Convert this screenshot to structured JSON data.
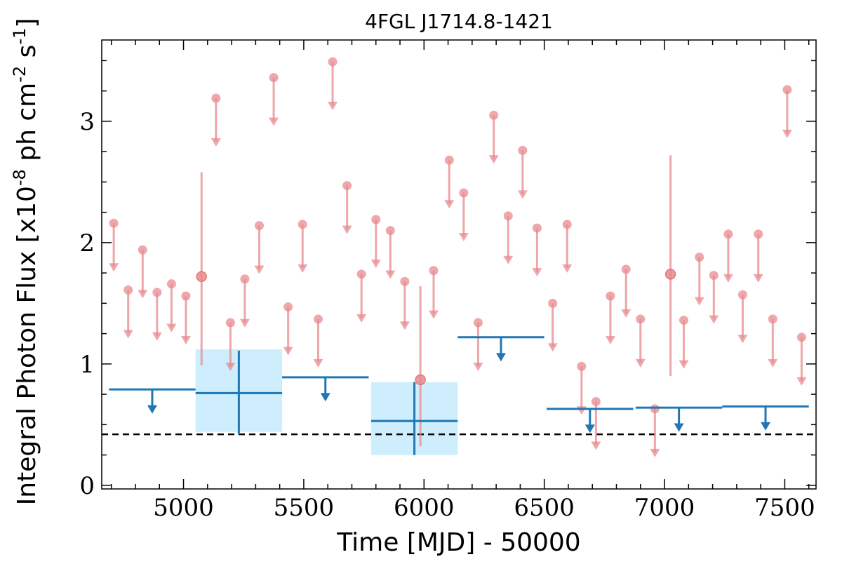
{
  "chart_data": {
    "type": "scatter",
    "title": "4FGL J1714.8-1421",
    "xlabel": "Time [MJD] - 50000",
    "ylabel": "Integral Photon Flux [x10^{-8} ph cm^{-2} s^{-1}]",
    "xlim": [
      4660,
      7630
    ],
    "ylim": [
      -0.03,
      3.67
    ],
    "x_ticks": [
      5000,
      5500,
      6000,
      6500,
      7000,
      7500
    ],
    "y_ticks": [
      0,
      1,
      2,
      3
    ],
    "grid": false,
    "legend": "none",
    "colors": {
      "short_points": "#e8898d",
      "long_bins": "#1f77b4",
      "long_bin_box": "#cfeefd",
      "baseline": "#000000"
    },
    "baseline_flux": 0.42,
    "series": [
      {
        "kind": "short-bin-upper-limits",
        "points": [
          {
            "x": 4710,
            "y": 2.16
          },
          {
            "x": 4770,
            "y": 1.61
          },
          {
            "x": 4830,
            "y": 1.94
          },
          {
            "x": 4890,
            "y": 1.59
          },
          {
            "x": 4950,
            "y": 1.66
          },
          {
            "x": 5010,
            "y": 1.56
          },
          {
            "x": 5135,
            "y": 3.19
          },
          {
            "x": 5195,
            "y": 1.34
          },
          {
            "x": 5255,
            "y": 1.7
          },
          {
            "x": 5315,
            "y": 2.14
          },
          {
            "x": 5375,
            "y": 3.36
          },
          {
            "x": 5435,
            "y": 1.47
          },
          {
            "x": 5495,
            "y": 2.15
          },
          {
            "x": 5560,
            "y": 1.37
          },
          {
            "x": 5620,
            "y": 3.49
          },
          {
            "x": 5680,
            "y": 2.47
          },
          {
            "x": 5740,
            "y": 1.74
          },
          {
            "x": 5800,
            "y": 2.19
          },
          {
            "x": 5860,
            "y": 2.1
          },
          {
            "x": 5920,
            "y": 1.68
          },
          {
            "x": 6040,
            "y": 1.77
          },
          {
            "x": 6105,
            "y": 2.68
          },
          {
            "x": 6165,
            "y": 2.41
          },
          {
            "x": 6225,
            "y": 1.34
          },
          {
            "x": 6290,
            "y": 3.05
          },
          {
            "x": 6350,
            "y": 2.22
          },
          {
            "x": 6410,
            "y": 2.76
          },
          {
            "x": 6470,
            "y": 2.12
          },
          {
            "x": 6535,
            "y": 1.5
          },
          {
            "x": 6595,
            "y": 2.15
          },
          {
            "x": 6655,
            "y": 0.98
          },
          {
            "x": 6715,
            "y": 0.69
          },
          {
            "x": 6775,
            "y": 1.56
          },
          {
            "x": 6840,
            "y": 1.78
          },
          {
            "x": 6900,
            "y": 1.37
          },
          {
            "x": 6960,
            "y": 0.63
          },
          {
            "x": 7080,
            "y": 1.36
          },
          {
            "x": 7145,
            "y": 1.88
          },
          {
            "x": 7205,
            "y": 1.73
          },
          {
            "x": 7265,
            "y": 2.07
          },
          {
            "x": 7325,
            "y": 1.57
          },
          {
            "x": 7390,
            "y": 2.07
          },
          {
            "x": 7450,
            "y": 1.37
          },
          {
            "x": 7510,
            "y": 3.26
          },
          {
            "x": 7570,
            "y": 1.22
          }
        ]
      },
      {
        "kind": "short-bin-detections",
        "points": [
          {
            "x": 5075,
            "y": 1.72,
            "y_low": 0.99,
            "y_high": 2.58
          },
          {
            "x": 5985,
            "y": 0.87,
            "y_low": 0.32,
            "y_high": 1.64
          },
          {
            "x": 7025,
            "y": 1.74,
            "y_low": 0.9,
            "y_high": 2.72
          }
        ]
      },
      {
        "kind": "long-bin-upper-limits",
        "bins": [
          {
            "x_start": 4690,
            "x_end": 5050,
            "x": 4870,
            "y": 0.79
          },
          {
            "x_start": 5410,
            "x_end": 5770,
            "x": 5590,
            "y": 0.89
          },
          {
            "x_start": 6140,
            "x_end": 6500,
            "x": 6320,
            "y": 1.22
          },
          {
            "x_start": 6510,
            "x_end": 6870,
            "x": 6690,
            "y": 0.63
          },
          {
            "x_start": 6880,
            "x_end": 7240,
            "x": 7060,
            "y": 0.64
          },
          {
            "x_start": 7240,
            "x_end": 7600,
            "x": 7420,
            "y": 0.65
          }
        ]
      },
      {
        "kind": "long-bin-detections",
        "bins": [
          {
            "x_start": 5050,
            "x_end": 5410,
            "x": 5230,
            "y": 0.76,
            "y_low": 0.42,
            "y_high": 1.11,
            "box_low": 0.44,
            "box_high": 1.12
          },
          {
            "x_start": 5780,
            "x_end": 6140,
            "x": 5960,
            "y": 0.53,
            "y_low": 0.25,
            "y_high": 0.85,
            "box_low": 0.25,
            "box_high": 0.85
          }
        ]
      }
    ]
  }
}
